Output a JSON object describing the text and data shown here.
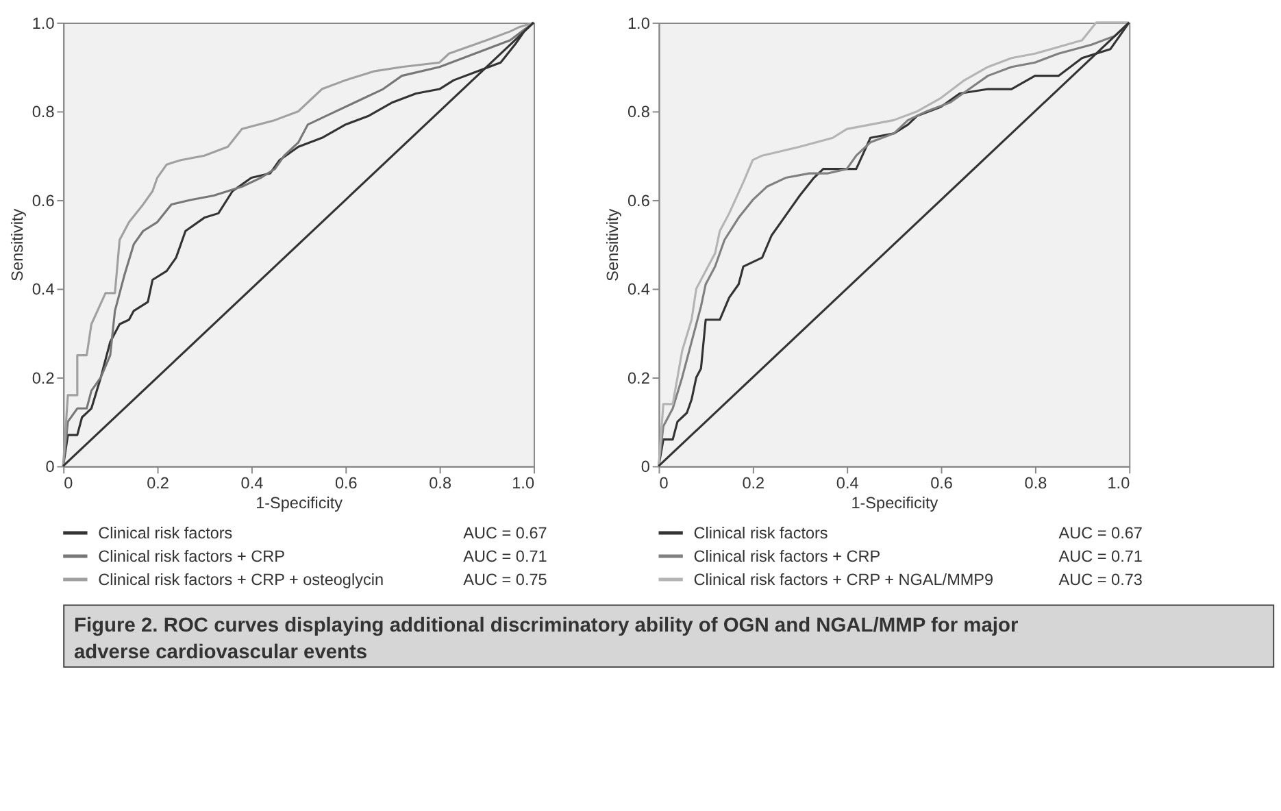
{
  "chart_data": [
    {
      "type": "line",
      "xlabel": "1-Specificity",
      "ylabel": "Sensitivity",
      "xlim": [
        0,
        1
      ],
      "ylim": [
        0,
        1
      ],
      "xticks": [
        0,
        0.2,
        0.4,
        0.6,
        0.8,
        {
          "value": 1,
          "label": "1.0"
        }
      ],
      "yticks": [
        0,
        0.2,
        0.4,
        0.6,
        0.8,
        {
          "value": 1,
          "label": "1.0"
        }
      ],
      "grid": false,
      "legend": "bottom",
      "annotations": [
        "AUC = 0.67",
        "AUC = 0.71",
        "AUC = 0.75"
      ],
      "series": [
        {
          "name": "Clinical risk factors",
          "color": "#333333",
          "x": [
            0,
            0.01,
            0.03,
            0.04,
            0.06,
            0.08,
            0.1,
            0.12,
            0.14,
            0.15,
            0.18,
            0.19,
            0.22,
            0.24,
            0.26,
            0.3,
            0.33,
            0.36,
            0.4,
            0.44,
            0.46,
            0.5,
            0.55,
            0.6,
            0.65,
            0.7,
            0.75,
            0.8,
            0.83,
            0.88,
            0.93,
            0.96,
            0.98,
            1
          ],
          "values": [
            0,
            0.07,
            0.07,
            0.11,
            0.13,
            0.2,
            0.28,
            0.32,
            0.33,
            0.35,
            0.37,
            0.42,
            0.44,
            0.47,
            0.53,
            0.56,
            0.57,
            0.62,
            0.65,
            0.66,
            0.69,
            0.72,
            0.74,
            0.77,
            0.79,
            0.82,
            0.84,
            0.85,
            0.87,
            0.89,
            0.91,
            0.95,
            0.98,
            1
          ]
        },
        {
          "name": "Clinical risk factors + CRP",
          "color": "#777777",
          "x": [
            0,
            0.01,
            0.03,
            0.05,
            0.06,
            0.08,
            0.1,
            0.11,
            0.13,
            0.15,
            0.17,
            0.2,
            0.23,
            0.27,
            0.32,
            0.38,
            0.42,
            0.45,
            0.47,
            0.5,
            0.52,
            0.56,
            0.62,
            0.68,
            0.72,
            0.8,
            0.85,
            0.9,
            0.95,
            1
          ],
          "values": [
            0,
            0.1,
            0.13,
            0.13,
            0.17,
            0.2,
            0.25,
            0.35,
            0.43,
            0.5,
            0.53,
            0.55,
            0.59,
            0.6,
            0.61,
            0.63,
            0.65,
            0.67,
            0.7,
            0.73,
            0.77,
            0.79,
            0.82,
            0.85,
            0.88,
            0.9,
            0.92,
            0.94,
            0.96,
            1
          ]
        },
        {
          "name": "Clinical risk factors + CRP + osteoglycin",
          "color": "#a0a0a0",
          "x": [
            0,
            0.01,
            0.03,
            0.03,
            0.05,
            0.06,
            0.09,
            0.11,
            0.12,
            0.14,
            0.17,
            0.19,
            0.2,
            0.22,
            0.25,
            0.3,
            0.35,
            0.38,
            0.45,
            0.5,
            0.53,
            0.55,
            0.6,
            0.66,
            0.72,
            0.8,
            0.82,
            0.9,
            0.95,
            0.97,
            1
          ],
          "values": [
            0,
            0.16,
            0.16,
            0.25,
            0.25,
            0.32,
            0.39,
            0.39,
            0.51,
            0.55,
            0.59,
            0.62,
            0.65,
            0.68,
            0.69,
            0.7,
            0.72,
            0.76,
            0.78,
            0.8,
            0.83,
            0.85,
            0.87,
            0.89,
            0.9,
            0.91,
            0.93,
            0.96,
            0.98,
            0.99,
            1
          ]
        },
        {
          "color": "#333333",
          "x": [
            0,
            1
          ],
          "values": [
            0,
            1
          ]
        }
      ]
    },
    {
      "type": "line",
      "xlabel": "1-Specificity",
      "ylabel": "Sensitivity",
      "xlim": [
        0,
        1
      ],
      "ylim": [
        0,
        1
      ],
      "xticks": [
        0,
        0.2,
        0.4,
        0.6,
        0.8,
        {
          "value": 1,
          "label": "1.0"
        }
      ],
      "yticks": [
        0,
        0.2,
        0.4,
        0.6,
        0.8,
        {
          "value": 1,
          "label": "1.0"
        }
      ],
      "grid": false,
      "legend": "bottom",
      "annotations": [
        "AUC = 0.67",
        "AUC = 0.71",
        "AUC = 0.73"
      ],
      "series": [
        {
          "name": "Clinical risk factors",
          "color": "#333333",
          "x": [
            0,
            0.01,
            0.03,
            0.04,
            0.06,
            0.07,
            0.08,
            0.09,
            0.1,
            0.13,
            0.15,
            0.17,
            0.18,
            0.22,
            0.24,
            0.26,
            0.28,
            0.3,
            0.33,
            0.35,
            0.42,
            0.45,
            0.5,
            0.53,
            0.55,
            0.6,
            0.64,
            0.7,
            0.75,
            0.8,
            0.85,
            0.9,
            0.96,
            1
          ],
          "values": [
            0,
            0.06,
            0.06,
            0.1,
            0.12,
            0.15,
            0.2,
            0.22,
            0.33,
            0.33,
            0.38,
            0.41,
            0.45,
            0.47,
            0.52,
            0.55,
            0.58,
            0.61,
            0.65,
            0.67,
            0.67,
            0.74,
            0.75,
            0.77,
            0.79,
            0.81,
            0.84,
            0.85,
            0.85,
            0.88,
            0.88,
            0.92,
            0.94,
            1
          ]
        },
        {
          "name": "Clinical risk factors + CRP",
          "color": "#808080",
          "x": [
            0,
            0.01,
            0.03,
            0.05,
            0.07,
            0.09,
            0.1,
            0.12,
            0.14,
            0.17,
            0.2,
            0.23,
            0.27,
            0.32,
            0.36,
            0.4,
            0.42,
            0.45,
            0.5,
            0.53,
            0.57,
            0.62,
            0.66,
            0.7,
            0.75,
            0.8,
            0.85,
            0.92,
            0.97,
            1
          ],
          "values": [
            0,
            0.09,
            0.13,
            0.2,
            0.28,
            0.36,
            0.41,
            0.45,
            0.51,
            0.56,
            0.6,
            0.63,
            0.65,
            0.66,
            0.66,
            0.67,
            0.7,
            0.73,
            0.75,
            0.78,
            0.8,
            0.82,
            0.85,
            0.88,
            0.9,
            0.91,
            0.93,
            0.95,
            0.97,
            1
          ]
        },
        {
          "name": "Clinical risk factors + CRP + NGAL/MMP9",
          "color": "#b4b4b4",
          "x": [
            0,
            0.01,
            0.03,
            0.04,
            0.05,
            0.07,
            0.08,
            0.1,
            0.12,
            0.13,
            0.15,
            0.18,
            0.2,
            0.22,
            0.3,
            0.37,
            0.4,
            0.45,
            0.5,
            0.55,
            0.6,
            0.65,
            0.7,
            0.75,
            0.8,
            0.9,
            0.93,
            1
          ],
          "values": [
            0,
            0.14,
            0.14,
            0.2,
            0.26,
            0.33,
            0.4,
            0.44,
            0.48,
            0.53,
            0.57,
            0.64,
            0.69,
            0.7,
            0.72,
            0.74,
            0.76,
            0.77,
            0.78,
            0.8,
            0.83,
            0.87,
            0.9,
            0.92,
            0.93,
            0.96,
            1,
            1
          ]
        },
        {
          "color": "#333333",
          "x": [
            0,
            1
          ],
          "values": [
            0,
            1
          ]
        }
      ]
    },
    {
      "type": "other",
      "title": "Figure 2. ROC curves displaying additional discriminatory ability of OGN and NGAL/MMP for major adverse cardiovascular events"
    }
  ]
}
